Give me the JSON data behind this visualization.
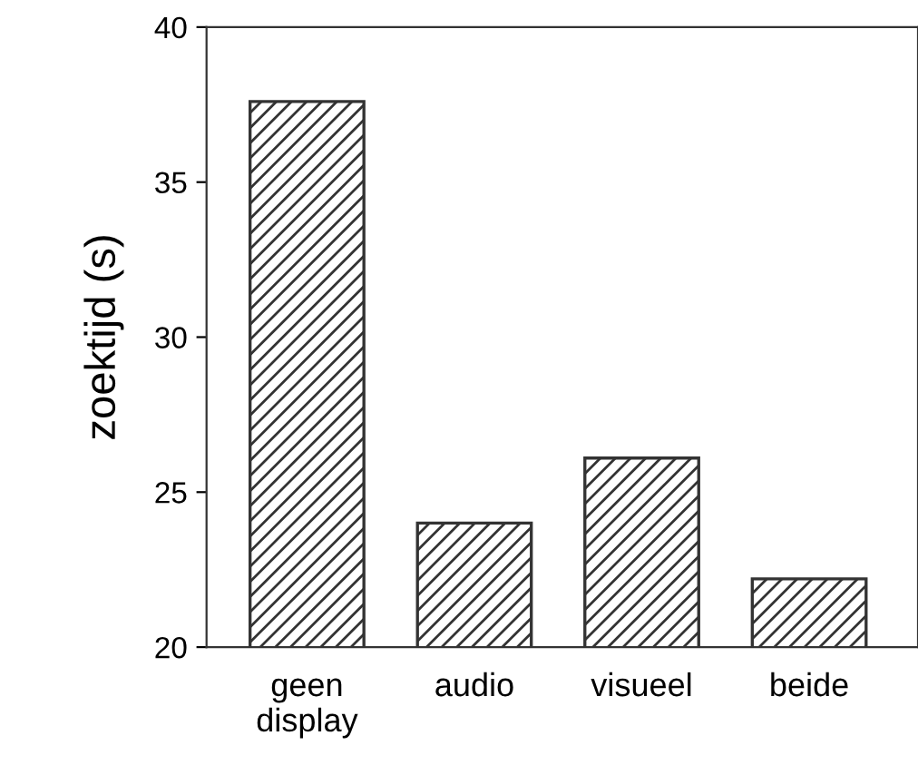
{
  "chart_data": {
    "type": "bar",
    "ylabel": "zoektijd (s)",
    "categories": [
      "geen\ndisplay",
      "audio",
      "visueel",
      "beide"
    ],
    "values": [
      37.6,
      24.0,
      26.1,
      22.2
    ],
    "color": "#333333",
    "ylim": [
      20,
      40
    ],
    "yticks": [
      20,
      25,
      30,
      35,
      40
    ],
    "grid": false
  }
}
